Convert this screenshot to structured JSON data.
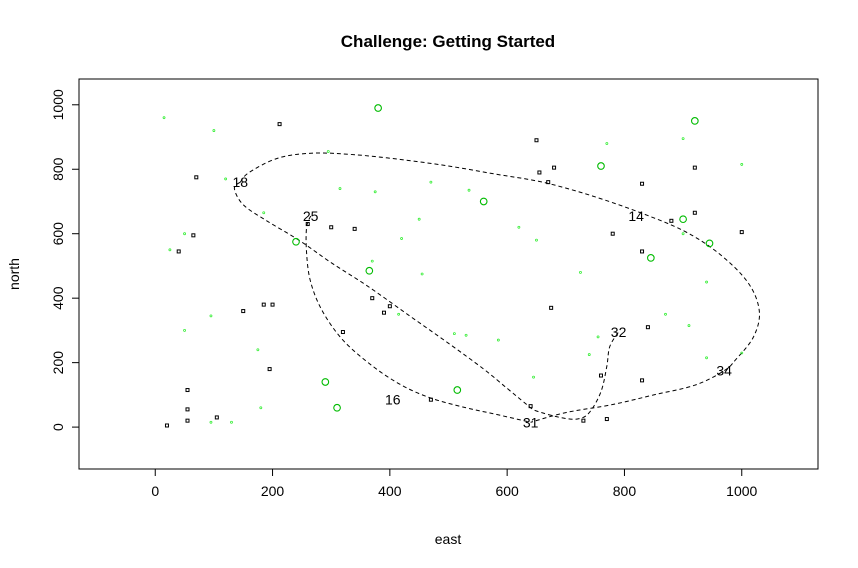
{
  "chart_data": {
    "type": "scatter",
    "title": "Challenge: Getting Started",
    "xlabel": "east",
    "ylabel": "north",
    "xlim": [
      -130,
      1130
    ],
    "ylim": [
      -130,
      1080
    ],
    "xticks": [
      0,
      200,
      400,
      600,
      800,
      1000
    ],
    "yticks": [
      0,
      200,
      400,
      600,
      800,
      1000
    ],
    "colors": {
      "black": "#000000",
      "green": "#00bb00",
      "lightgreen": "#33ee33"
    },
    "series": [
      {
        "style": "black-square",
        "points": [
          [
            212,
            940
          ],
          [
            70,
            775
          ],
          [
            650,
            890
          ],
          [
            680,
            805
          ],
          [
            670,
            760
          ],
          [
            655,
            790
          ],
          [
            830,
            755
          ],
          [
            920,
            805
          ],
          [
            300,
            620
          ],
          [
            260,
            630
          ],
          [
            880,
            640
          ],
          [
            920,
            665
          ],
          [
            65,
            595
          ],
          [
            40,
            545
          ],
          [
            340,
            615
          ],
          [
            780,
            600
          ],
          [
            830,
            545
          ],
          [
            1000,
            605
          ],
          [
            370,
            400
          ],
          [
            200,
            380
          ],
          [
            185,
            380
          ],
          [
            150,
            360
          ],
          [
            400,
            375
          ],
          [
            390,
            355
          ],
          [
            320,
            295
          ],
          [
            675,
            370
          ],
          [
            840,
            310
          ],
          [
            195,
            180
          ],
          [
            55,
            115
          ],
          [
            760,
            160
          ],
          [
            830,
            145
          ],
          [
            55,
            55
          ],
          [
            105,
            30
          ],
          [
            470,
            85
          ],
          [
            640,
            65
          ],
          [
            55,
            20
          ],
          [
            20,
            5
          ],
          [
            770,
            25
          ],
          [
            730,
            20
          ]
        ]
      },
      {
        "style": "green-open-circle",
        "points": [
          [
            380,
            990
          ],
          [
            920,
            950
          ],
          [
            760,
            810
          ],
          [
            560,
            700
          ],
          [
            900,
            645
          ],
          [
            945,
            570
          ],
          [
            240,
            575
          ],
          [
            845,
            525
          ],
          [
            365,
            485
          ],
          [
            290,
            140
          ],
          [
            310,
            60
          ],
          [
            515,
            115
          ]
        ]
      },
      {
        "style": "green-dot",
        "points": [
          [
            15,
            960
          ],
          [
            100,
            920
          ],
          [
            295,
            855
          ],
          [
            770,
            880
          ],
          [
            900,
            895
          ],
          [
            1000,
            815
          ],
          [
            120,
            770
          ],
          [
            315,
            740
          ],
          [
            375,
            730
          ],
          [
            535,
            735
          ],
          [
            185,
            665
          ],
          [
            450,
            645
          ],
          [
            900,
            600
          ],
          [
            25,
            550
          ],
          [
            50,
            600
          ],
          [
            420,
            585
          ],
          [
            370,
            515
          ],
          [
            455,
            475
          ],
          [
            725,
            480
          ],
          [
            940,
            450
          ],
          [
            870,
            350
          ],
          [
            910,
            315
          ],
          [
            95,
            345
          ],
          [
            50,
            300
          ],
          [
            510,
            290
          ],
          [
            530,
            285
          ],
          [
            585,
            270
          ],
          [
            755,
            280
          ],
          [
            740,
            225
          ],
          [
            175,
            240
          ],
          [
            940,
            215
          ],
          [
            645,
            155
          ],
          [
            180,
            60
          ],
          [
            130,
            15
          ],
          [
            95,
            15
          ],
          [
            415,
            350
          ],
          [
            1000,
            230
          ],
          [
            620,
            620
          ],
          [
            470,
            760
          ],
          [
            650,
            580
          ]
        ]
      },
      {
        "style": "label",
        "points": [
          [
            145,
            760,
            "18"
          ],
          [
            265,
            655,
            "25"
          ],
          [
            820,
            655,
            "14"
          ],
          [
            790,
            295,
            "32"
          ],
          [
            970,
            175,
            "34"
          ],
          [
            405,
            85,
            "16"
          ],
          [
            640,
            15,
            "31"
          ]
        ]
      }
    ],
    "paths": [
      [
        [
          145,
          760
        ],
        [
          135,
          740
        ],
        [
          150,
          690
        ],
        [
          190,
          640
        ],
        [
          245,
          580
        ],
        [
          300,
          510
        ],
        [
          360,
          440
        ],
        [
          430,
          350
        ],
        [
          500,
          260
        ],
        [
          560,
          180
        ],
        [
          600,
          120
        ],
        [
          630,
          75
        ],
        [
          640,
          60
        ],
        [
          650,
          50
        ],
        [
          690,
          30
        ],
        [
          720,
          25
        ],
        [
          740,
          45
        ],
        [
          760,
          110
        ],
        [
          770,
          190
        ],
        [
          775,
          250
        ],
        [
          790,
          295
        ]
      ],
      [
        [
          265,
          655
        ],
        [
          258,
          620
        ],
        [
          258,
          540
        ],
        [
          265,
          450
        ],
        [
          285,
          360
        ],
        [
          320,
          270
        ],
        [
          370,
          190
        ],
        [
          420,
          130
        ],
        [
          470,
          90
        ],
        [
          530,
          60
        ],
        [
          580,
          40
        ],
        [
          640,
          15
        ]
      ],
      [
        [
          145,
          760
        ],
        [
          160,
          790
        ],
        [
          210,
          835
        ],
        [
          270,
          850
        ],
        [
          340,
          845
        ],
        [
          420,
          830
        ],
        [
          500,
          810
        ],
        [
          580,
          785
        ],
        [
          660,
          760
        ],
        [
          740,
          720
        ],
        [
          820,
          670
        ],
        [
          900,
          610
        ],
        [
          960,
          540
        ],
        [
          1010,
          450
        ],
        [
          1030,
          360
        ],
        [
          1020,
          280
        ],
        [
          990,
          210
        ],
        [
          970,
          175
        ],
        [
          920,
          130
        ],
        [
          850,
          100
        ],
        [
          780,
          70
        ],
        [
          700,
          45
        ],
        [
          640,
          15
        ]
      ]
    ]
  }
}
